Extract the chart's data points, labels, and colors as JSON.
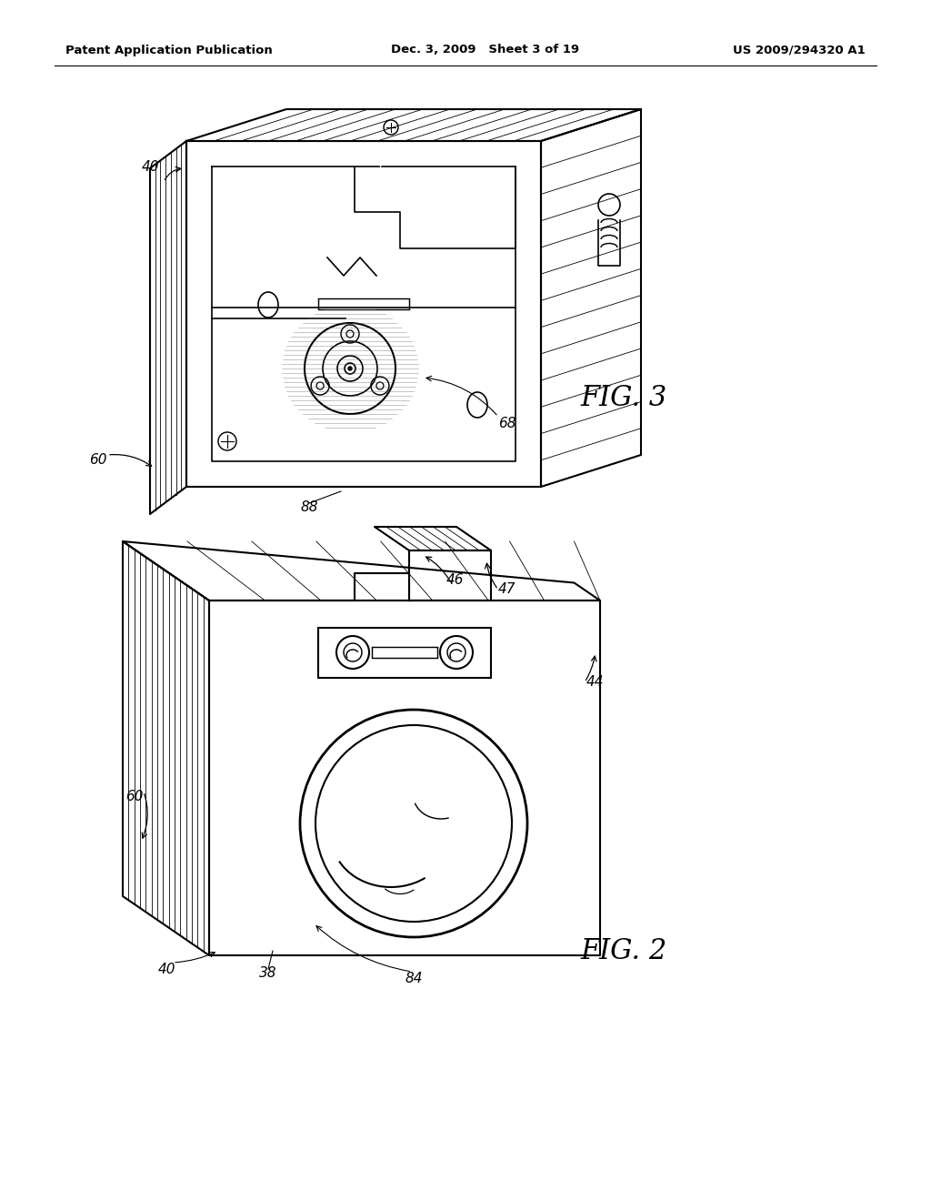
{
  "bg_color": "#ffffff",
  "line_color": "#000000",
  "header_left": "Patent Application Publication",
  "header_center": "Dec. 3, 2009   Sheet 3 of 19",
  "header_right": "US 2009/294320 A1",
  "fig3_label": "FIG. 3",
  "fig2_label": "FIG. 2",
  "lw": 1.5,
  "hatch_lw": 0.6
}
